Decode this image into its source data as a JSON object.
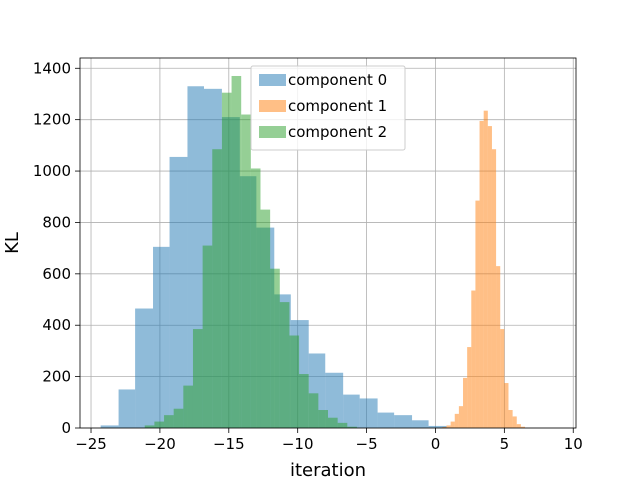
{
  "chart_data": {
    "type": "histogram",
    "xlabel": "iteration",
    "ylabel": "KL",
    "xlim": [
      -25.8,
      10.2
    ],
    "ylim": [
      0,
      1440
    ],
    "grid": true,
    "legend_position": "upper center",
    "xticks": [
      -25,
      -20,
      -15,
      -10,
      -5,
      0,
      5,
      10
    ],
    "yticks": [
      0,
      200,
      400,
      600,
      800,
      1000,
      1200,
      1400
    ],
    "series": [
      {
        "name": "component 0",
        "color": "#1f77b4",
        "alpha": 0.5,
        "bins": [
          {
            "x0": -24.3,
            "x1": -23.0,
            "count": 10
          },
          {
            "x0": -23.0,
            "x1": -21.8,
            "count": 150
          },
          {
            "x0": -21.8,
            "x1": -20.5,
            "count": 465
          },
          {
            "x0": -20.5,
            "x1": -19.3,
            "count": 705
          },
          {
            "x0": -19.3,
            "x1": -18.0,
            "count": 1055
          },
          {
            "x0": -18.0,
            "x1": -16.8,
            "count": 1330
          },
          {
            "x0": -16.8,
            "x1": -15.5,
            "count": 1320
          },
          {
            "x0": -15.5,
            "x1": -14.2,
            "count": 1210
          },
          {
            "x0": -14.2,
            "x1": -13.0,
            "count": 980
          },
          {
            "x0": -13.0,
            "x1": -11.7,
            "count": 780
          },
          {
            "x0": -11.7,
            "x1": -10.5,
            "count": 520
          },
          {
            "x0": -10.5,
            "x1": -9.2,
            "count": 420
          },
          {
            "x0": -9.2,
            "x1": -8.0,
            "count": 290
          },
          {
            "x0": -8.0,
            "x1": -6.7,
            "count": 215
          },
          {
            "x0": -6.7,
            "x1": -5.5,
            "count": 130
          },
          {
            "x0": -5.5,
            "x1": -4.2,
            "count": 115
          },
          {
            "x0": -4.2,
            "x1": -3.0,
            "count": 60
          },
          {
            "x0": -3.0,
            "x1": -1.7,
            "count": 50
          },
          {
            "x0": -1.7,
            "x1": -0.5,
            "count": 30
          },
          {
            "x0": -0.5,
            "x1": 0.8,
            "count": 8
          }
        ]
      },
      {
        "name": "component 1",
        "color": "#ff7f0e",
        "alpha": 0.5,
        "bins": [
          {
            "x0": 0.5,
            "x1": 0.8,
            "count": 4
          },
          {
            "x0": 0.8,
            "x1": 1.1,
            "count": 10
          },
          {
            "x0": 1.1,
            "x1": 1.4,
            "count": 25
          },
          {
            "x0": 1.4,
            "x1": 1.7,
            "count": 55
          },
          {
            "x0": 1.7,
            "x1": 2.0,
            "count": 85
          },
          {
            "x0": 2.0,
            "x1": 2.3,
            "count": 195
          },
          {
            "x0": 2.3,
            "x1": 2.6,
            "count": 315
          },
          {
            "x0": 2.6,
            "x1": 2.9,
            "count": 535
          },
          {
            "x0": 2.9,
            "x1": 3.2,
            "count": 885
          },
          {
            "x0": 3.2,
            "x1": 3.5,
            "count": 1195
          },
          {
            "x0": 3.5,
            "x1": 3.8,
            "count": 1235
          },
          {
            "x0": 3.8,
            "x1": 4.1,
            "count": 1175
          },
          {
            "x0": 4.1,
            "x1": 4.4,
            "count": 1085
          },
          {
            "x0": 4.4,
            "x1": 4.7,
            "count": 630
          },
          {
            "x0": 4.7,
            "x1": 5.0,
            "count": 385
          },
          {
            "x0": 5.0,
            "x1": 5.3,
            "count": 175
          },
          {
            "x0": 5.3,
            "x1": 5.6,
            "count": 70
          },
          {
            "x0": 5.6,
            "x1": 5.9,
            "count": 45
          },
          {
            "x0": 5.9,
            "x1": 6.2,
            "count": 15
          },
          {
            "x0": 6.2,
            "x1": 6.5,
            "count": 5
          }
        ]
      },
      {
        "name": "component 2",
        "color": "#2ca02c",
        "alpha": 0.5,
        "bins": [
          {
            "x0": -21.1,
            "x1": -20.4,
            "count": 10
          },
          {
            "x0": -20.4,
            "x1": -19.7,
            "count": 25
          },
          {
            "x0": -19.7,
            "x1": -19.0,
            "count": 50
          },
          {
            "x0": -19.0,
            "x1": -18.3,
            "count": 75
          },
          {
            "x0": -18.3,
            "x1": -17.6,
            "count": 165
          },
          {
            "x0": -17.6,
            "x1": -16.9,
            "count": 385
          },
          {
            "x0": -16.9,
            "x1": -16.2,
            "count": 710
          },
          {
            "x0": -16.2,
            "x1": -15.5,
            "count": 1085
          },
          {
            "x0": -15.5,
            "x1": -14.8,
            "count": 1305
          },
          {
            "x0": -14.8,
            "x1": -14.1,
            "count": 1370
          },
          {
            "x0": -14.1,
            "x1": -13.4,
            "count": 1220
          },
          {
            "x0": -13.4,
            "x1": -12.7,
            "count": 1010
          },
          {
            "x0": -12.7,
            "x1": -12.0,
            "count": 850
          },
          {
            "x0": -12.0,
            "x1": -11.3,
            "count": 620
          },
          {
            "x0": -11.3,
            "x1": -10.6,
            "count": 490
          },
          {
            "x0": -10.6,
            "x1": -9.9,
            "count": 360
          },
          {
            "x0": -9.9,
            "x1": -9.2,
            "count": 210
          },
          {
            "x0": -9.2,
            "x1": -8.5,
            "count": 135
          },
          {
            "x0": -8.5,
            "x1": -7.8,
            "count": 70
          },
          {
            "x0": -7.8,
            "x1": -7.1,
            "count": 40
          },
          {
            "x0": -7.1,
            "x1": -6.4,
            "count": 20
          },
          {
            "x0": -6.4,
            "x1": -5.7,
            "count": 5
          }
        ]
      }
    ]
  }
}
